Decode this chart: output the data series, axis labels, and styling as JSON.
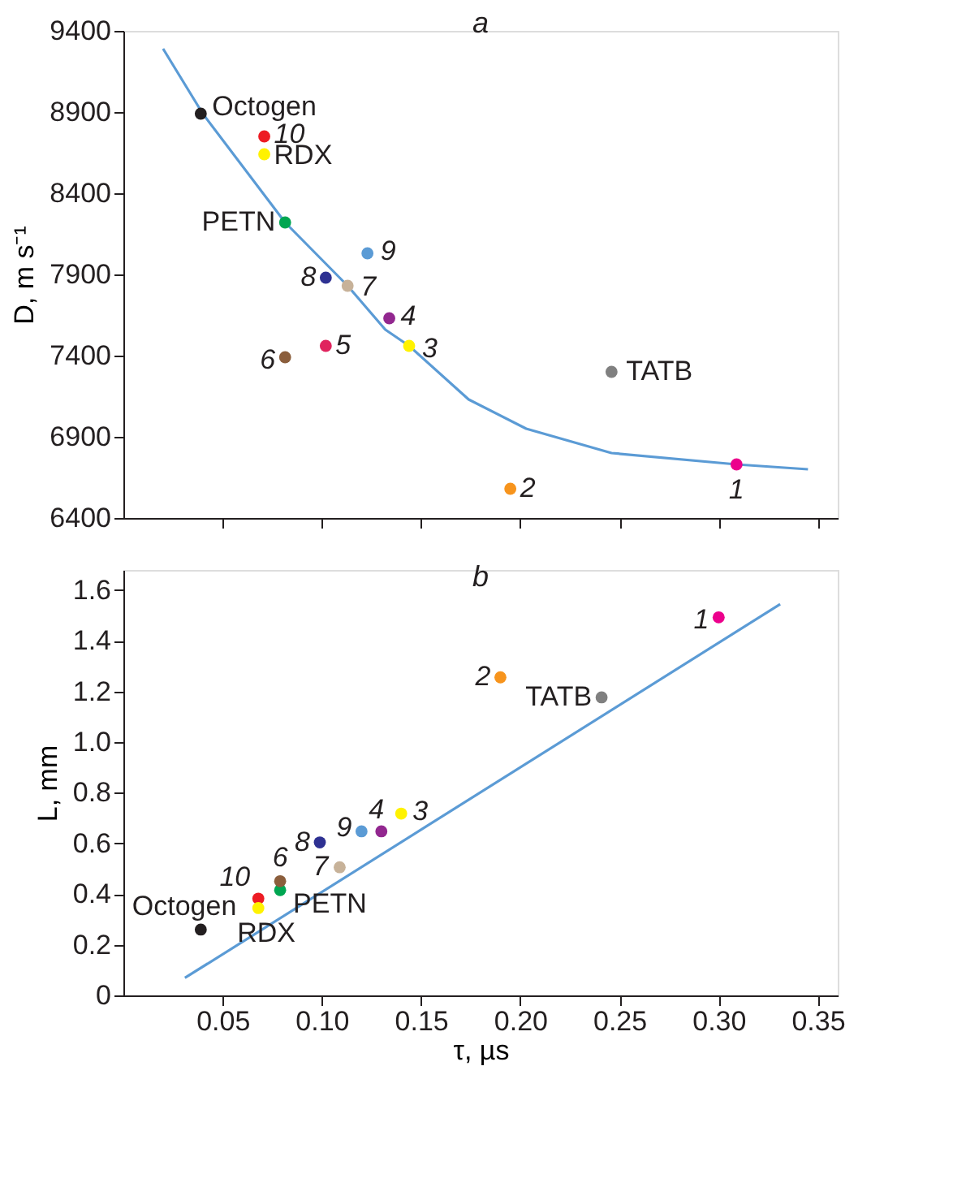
{
  "chart_data": [
    {
      "type": "scatter",
      "title": "a",
      "ylabel": "D, m s⁻¹",
      "xlim": [
        0,
        0.36
      ],
      "xticks": [
        {
          "value": 0.05,
          "label": null
        },
        {
          "value": 0.1,
          "label": null
        },
        {
          "value": 0.15,
          "label": null
        },
        {
          "value": 0.2,
          "label": null
        },
        {
          "value": 0.25,
          "label": null
        },
        {
          "value": 0.3,
          "label": null
        },
        {
          "value": 0.35,
          "label": null
        }
      ],
      "ylim": [
        6400,
        9400
      ],
      "yticks": [
        6400,
        6900,
        7400,
        7900,
        8400,
        8900,
        9400
      ],
      "tick_labels": "y",
      "grid": false,
      "marker": "circle",
      "series": [
        {
          "type": "line",
          "color": "#5b9bd5",
          "marker": "none",
          "line_style": "solid",
          "x": [
            0.02,
            0.04,
            0.0815,
            0.113,
            0.132,
            0.144,
            0.174,
            0.203,
            0.246,
            0.309,
            0.345
          ],
          "values": [
            9290,
            8890,
            8220,
            7830,
            7560,
            7460,
            7130,
            6950,
            6800,
            6730,
            6700
          ]
        },
        {
          "name": "Octogen",
          "color": "#231f20",
          "x": [
            0.039
          ],
          "values": [
            8890
          ]
        },
        {
          "name": "10",
          "color": "#ed1c24",
          "x": [
            0.071
          ],
          "values": [
            8750
          ]
        },
        {
          "name": "RDX",
          "color": "#fff200",
          "x": [
            0.071
          ],
          "values": [
            8640
          ]
        },
        {
          "name": "PETN",
          "color": "#00a651",
          "x": [
            0.0815
          ],
          "values": [
            8220
          ]
        },
        {
          "name": "9",
          "color": "#5b9bd5",
          "x": [
            0.123
          ],
          "values": [
            8030
          ]
        },
        {
          "name": "8",
          "color": "#2e3192",
          "x": [
            0.102
          ],
          "values": [
            7880
          ]
        },
        {
          "name": "7",
          "color": "#c7b299",
          "x": [
            0.113
          ],
          "values": [
            7830
          ]
        },
        {
          "name": "4",
          "color": "#92278f",
          "x": [
            0.134
          ],
          "values": [
            7630
          ]
        },
        {
          "name": "3",
          "color": "#fff200",
          "x": [
            0.144
          ],
          "values": [
            7460
          ]
        },
        {
          "name": "5",
          "color": "#e0245e",
          "x": [
            0.102
          ],
          "values": [
            7460
          ]
        },
        {
          "name": "6",
          "color": "#8b5e3c",
          "x": [
            0.0815
          ],
          "values": [
            7390
          ]
        },
        {
          "name": "TATB",
          "color": "#808080",
          "x": [
            0.246
          ],
          "values": [
            7300
          ]
        },
        {
          "name": "2",
          "color": "#f7941d",
          "x": [
            0.195
          ],
          "values": [
            6580
          ]
        },
        {
          "name": "1",
          "color": "#ec008c",
          "x": [
            0.309
          ],
          "values": [
            6730
          ]
        }
      ]
    },
    {
      "type": "scatter",
      "title": "b",
      "xlabel": "τ, µs",
      "ylabel": "L, mm",
      "xlim": [
        0,
        0.36
      ],
      "xticks": [
        0.05,
        {
          "value": 0.1,
          "label": "0.10"
        },
        0.15,
        {
          "value": 0.2,
          "label": "0.20"
        },
        0.25,
        {
          "value": 0.3,
          "label": "0.30"
        },
        0.35
      ],
      "ylim": [
        0,
        1.68
      ],
      "yticks": [
        0,
        0.2,
        0.4,
        0.6,
        0.8,
        {
          "value": 1,
          "label": "1.0"
        },
        1.2,
        1.4,
        1.6
      ],
      "grid": false,
      "marker": "circle",
      "series": [
        {
          "type": "line",
          "color": "#5b9bd5",
          "marker": "none",
          "line_style": "solid",
          "x": [
            0.031,
            0.331
          ],
          "values": [
            0.069,
            1.545
          ]
        },
        {
          "name": "Octogen",
          "color": "#231f20",
          "x": [
            0.039
          ],
          "values": [
            0.26
          ]
        },
        {
          "name": "10",
          "color": "#ed1c24",
          "x": [
            0.068
          ],
          "values": [
            0.382
          ]
        },
        {
          "name": "RDX",
          "color": "#fff200",
          "x": [
            0.068
          ],
          "values": [
            0.345
          ]
        },
        {
          "name": "PETN",
          "color": "#00a651",
          "x": [
            0.079
          ],
          "values": [
            0.416
          ]
        },
        {
          "name": "9",
          "color": "#5b9bd5",
          "x": [
            0.12
          ],
          "values": [
            0.648
          ]
        },
        {
          "name": "8",
          "color": "#2e3192",
          "x": [
            0.099
          ],
          "values": [
            0.604
          ]
        },
        {
          "name": "7",
          "color": "#c7b299",
          "x": [
            0.109
          ],
          "values": [
            0.506
          ]
        },
        {
          "name": "4",
          "color": "#92278f",
          "x": [
            0.13
          ],
          "values": [
            0.648
          ]
        },
        {
          "name": "3",
          "color": "#fff200",
          "x": [
            0.14
          ],
          "values": [
            0.718
          ]
        },
        {
          "name": "6",
          "color": "#8b5e3c",
          "x": [
            0.079
          ],
          "values": [
            0.451
          ]
        },
        {
          "name": "TATB",
          "color": "#808080",
          "x": [
            0.241
          ],
          "values": [
            1.177
          ]
        },
        {
          "name": "2",
          "color": "#f7941d",
          "x": [
            0.19
          ],
          "values": [
            1.256
          ]
        },
        {
          "name": "1",
          "color": "#ec008c",
          "x": [
            0.3
          ],
          "values": [
            1.493
          ]
        }
      ]
    }
  ]
}
